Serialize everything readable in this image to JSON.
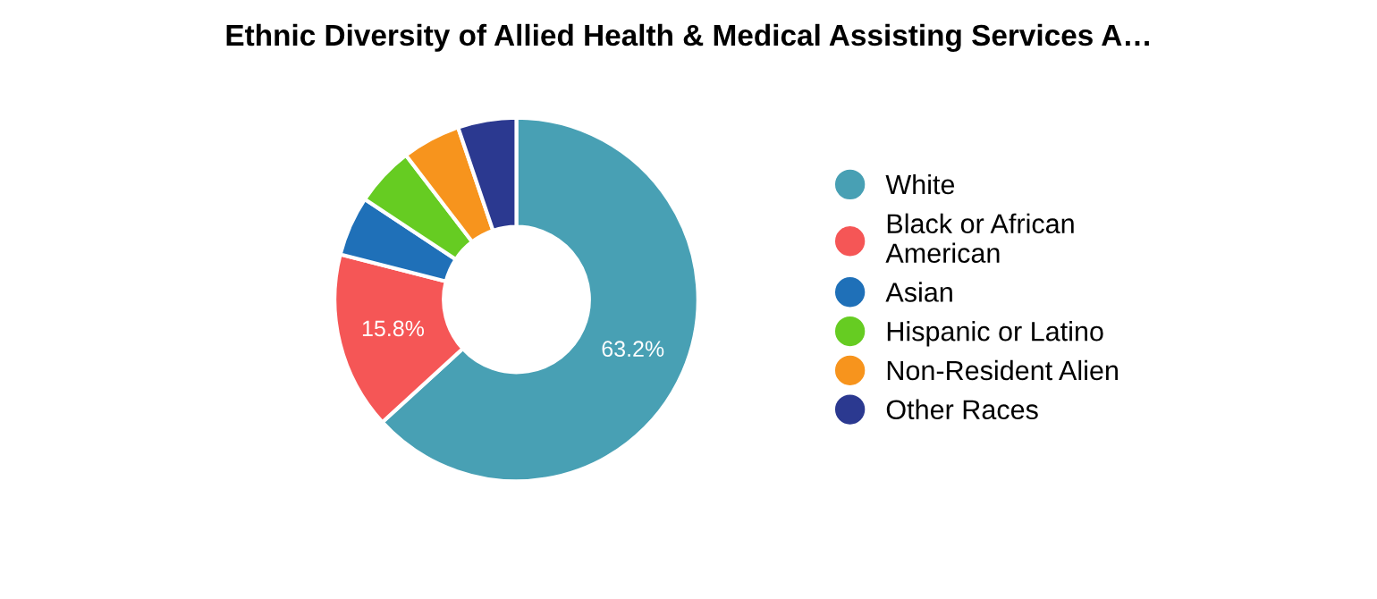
{
  "chart_data": {
    "type": "donut",
    "title": "Ethnic Diversity of Allied Health & Medical Assisting Services A…",
    "categories": [
      "White",
      "Black or African\nAmerican",
      "Asian",
      "Hispanic or Latino",
      "Non-Resident Alien",
      "Other Races"
    ],
    "values": [
      63.2,
      15.8,
      5.3,
      5.3,
      5.2,
      5.2
    ],
    "value_labels": [
      "63.2%",
      "15.8%",
      null,
      null,
      null,
      null
    ],
    "colors": [
      "#48a0b4",
      "#f55656",
      "#1f70b8",
      "#66cc22",
      "#f7941d",
      "#2b3990"
    ],
    "legend": "right"
  }
}
